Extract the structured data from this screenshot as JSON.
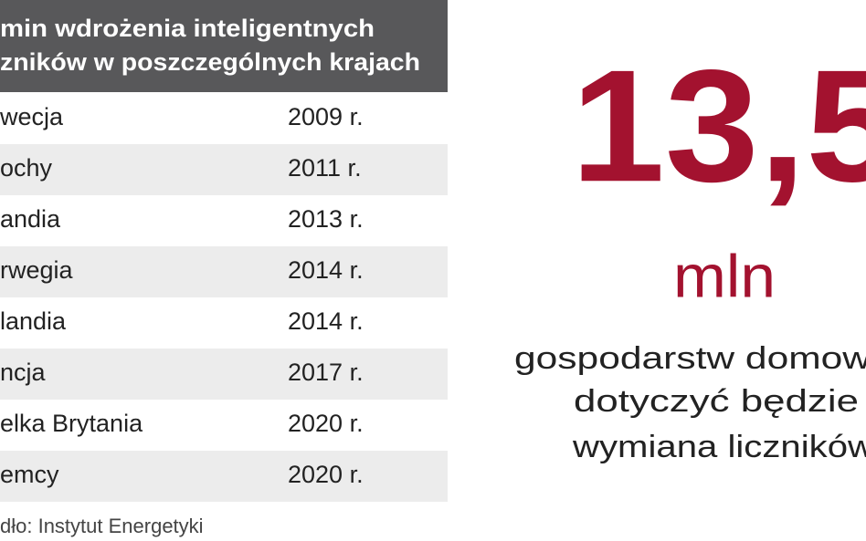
{
  "header": {
    "title_lines": [
      "min wdrożenia inteligentnych",
      "zników w poszczególnych krajach"
    ]
  },
  "table": {
    "rows": [
      [
        "wecja",
        "2009 r."
      ],
      [
        "ochy",
        "2011 r."
      ],
      [
        "andia",
        "2013 r."
      ],
      [
        "rwegia",
        "2014 r."
      ],
      [
        "landia",
        "2014 r."
      ],
      [
        "ncja",
        "2017 r."
      ],
      [
        "elka Brytania",
        "2020 r."
      ],
      [
        "emcy",
        "2020 r."
      ]
    ]
  },
  "source": "dło: Instytut Energetyki",
  "highlight": {
    "number": "13,5",
    "unit": "mln",
    "description_lines": [
      "gospodarstw domow",
      "dotyczyć będzie",
      "wymiana liczników"
    ]
  }
}
